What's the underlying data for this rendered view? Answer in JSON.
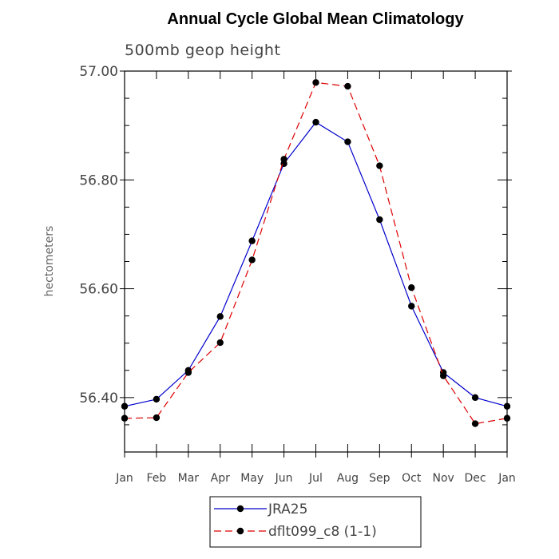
{
  "chart_data": {
    "type": "line",
    "title": "Annual Cycle Global Mean Climatology",
    "subtitle": "500mb geop height",
    "xlabel": "",
    "ylabel": "hectometers",
    "categories": [
      "Jan",
      "Feb",
      "Mar",
      "Apr",
      "May",
      "Jun",
      "Jul",
      "Aug",
      "Sep",
      "Oct",
      "Nov",
      "Dec",
      "Jan"
    ],
    "ylim": [
      56.3,
      57.0
    ],
    "yticks": [
      "56.40",
      "56.60",
      "56.80",
      "57.00"
    ],
    "series": [
      {
        "name": "JRA25",
        "color": "#0000cc",
        "dash": "solid",
        "values": [
          56.384,
          56.397,
          56.45,
          56.549,
          56.688,
          56.83,
          56.906,
          56.87,
          56.727,
          56.568,
          56.446,
          56.4,
          56.384
        ]
      },
      {
        "name": "dflt099_c8 (1-1)",
        "color": "#dd0000",
        "dash": "dashed",
        "values": [
          56.362,
          56.363,
          56.446,
          56.501,
          56.653,
          56.838,
          56.979,
          56.972,
          56.826,
          56.602,
          56.44,
          56.352,
          56.362
        ]
      }
    ],
    "grid": false,
    "legend": "bottom-center"
  }
}
